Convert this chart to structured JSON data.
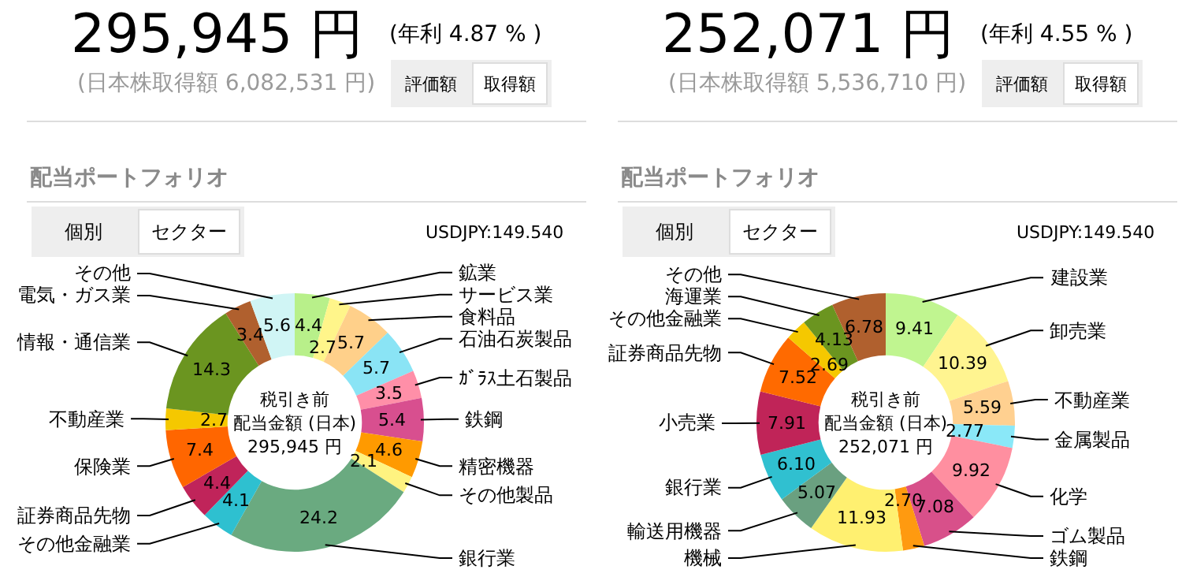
{
  "chart_data": [
    {
      "type": "donut",
      "title": "配当ポートフォリオ",
      "categories": [
        "鉱業",
        "サービス業",
        "食料品",
        "石油石炭製品",
        "ｶﾞﾗｽ土石製品",
        "鉄鋼",
        "精密機器",
        "その他製品",
        "銀行業",
        "その他金融業",
        "証券商品先物",
        "保険業",
        "不動産業",
        "情報・通信業",
        "電気・ガス業",
        "その他"
      ],
      "values": [
        4.4,
        2.7,
        5.7,
        5.7,
        3.5,
        5.4,
        4.6,
        2.1,
        24.2,
        4.1,
        4.4,
        7.4,
        2.7,
        14.3,
        3.4,
        5.6
      ],
      "value_labels": [
        "4.4",
        "2.7",
        "5.7",
        "5.7",
        "3.5",
        "5.4",
        "4.6",
        "2.1",
        "24.2",
        "4.1",
        "4.4",
        "7.4",
        "2.7",
        "14.3",
        "3.4",
        "5.6"
      ],
      "colors": [
        "#b8f08a",
        "#fff58a",
        "#ffd08a",
        "#8ae4f5",
        "#ff8fa8",
        "#d84f8f",
        "#ff9a00",
        "#fff380",
        "#6aaa80",
        "#2ec0d0",
        "#c0245a",
        "#ff6600",
        "#f5c800",
        "#6b9520",
        "#b0602e",
        "#d0f5f5"
      ],
      "annotations": [
        "295,945 円",
        "(年利 4.87 % )",
        "(日本株取得額 6,082,531 円)",
        "評価額",
        "取得額",
        "個別",
        "セクター",
        "USDJPY:149.540",
        "税引き前",
        "配当金額 (日本)",
        "295,945 円"
      ]
    },
    {
      "type": "donut",
      "title": "配当ポートフォリオ",
      "categories": [
        "建設業",
        "卸売業",
        "不動産業",
        "金属製品",
        "化学",
        "ゴム製品",
        "鉄鋼",
        "機械",
        "輸送用機器",
        "銀行業",
        "小売業",
        "証券商品先物",
        "その他金融業",
        "海運業",
        "その他"
      ],
      "values": [
        9.41,
        10.39,
        5.59,
        2.77,
        9.92,
        7.08,
        2.7,
        11.93,
        5.07,
        6.1,
        7.91,
        7.52,
        2.69,
        4.13,
        6.78
      ],
      "value_labels": [
        "9.41",
        "10.39",
        "5.59",
        "2.77",
        "9.92",
        "7.08",
        "2.70",
        "11.93",
        "5.07",
        "6.10",
        "7.91",
        "7.52",
        "2.69",
        "4.13",
        "6.78"
      ],
      "colors": [
        "#c0f590",
        "#fff490",
        "#ffd090",
        "#8ae8f8",
        "#ff8fa0",
        "#d8508a",
        "#ff9a10",
        "#fff070",
        "#6aa080",
        "#30c0d0",
        "#c02458",
        "#ff6a00",
        "#f5c800",
        "#6b9520",
        "#b0602e"
      ],
      "annotations": [
        "252,071 円",
        "(年利 4.55 % )",
        "(日本株取得額 5,536,710 円)",
        "評価額",
        "取得額",
        "個別",
        "セクター",
        "USDJPY:149.540",
        "税引き前",
        "配当金額 (日本)",
        "252,071 円"
      ]
    }
  ]
}
